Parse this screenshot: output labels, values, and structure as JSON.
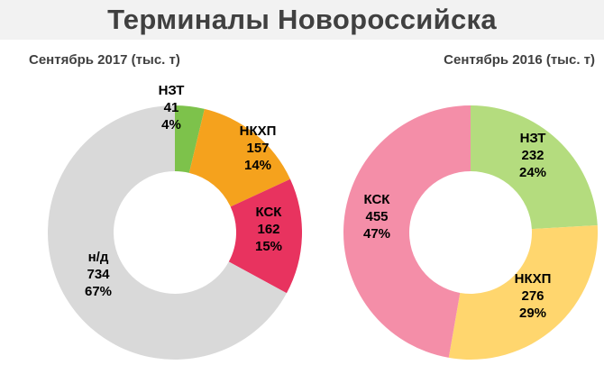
{
  "header": {
    "title": "Терминалы Новороссийска"
  },
  "chart_data": [
    {
      "type": "pie",
      "title": "Сентябрь 2017 (тыс. т)",
      "slices": [
        {
          "label": "НЗТ",
          "value": 41,
          "percent": "4%",
          "color": "#7dc24b"
        },
        {
          "label": "НКХП",
          "value": 157,
          "percent": "14%",
          "color": "#f5a21d"
        },
        {
          "label": "КСК",
          "value": 162,
          "percent": "15%",
          "color": "#e8335f"
        },
        {
          "label": "н/д",
          "value": 734,
          "percent": "67%",
          "color": "#d9d9d9"
        }
      ]
    },
    {
      "type": "pie",
      "title": "Сентябрь 2016 (тыс. т)",
      "slices": [
        {
          "label": "НЗТ",
          "value": 232,
          "percent": "24%",
          "color": "#b4dc7e"
        },
        {
          "label": "НКХП",
          "value": 276,
          "percent": "29%",
          "color": "#ffd66e"
        },
        {
          "label": "КСК",
          "value": 455,
          "percent": "47%",
          "color": "#f48ea8"
        }
      ]
    }
  ]
}
